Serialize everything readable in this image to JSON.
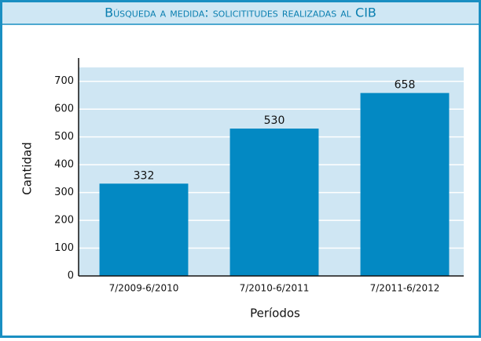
{
  "chart_data": {
    "type": "bar",
    "title": "Búsqueda a medida: solicititudes realizadas al CIB",
    "xlabel": "Períodos",
    "ylabel": "Cantidad",
    "categories": [
      "7/2009-6/2010",
      "7/2010-6/2011",
      "7/2011-6/2012"
    ],
    "values": [
      332,
      530,
      658
    ],
    "color": "#0389c3",
    "ylim": [
      0,
      750
    ],
    "yticks": [
      0,
      100,
      200,
      300,
      400,
      500,
      600,
      700
    ],
    "grid": true
  }
}
